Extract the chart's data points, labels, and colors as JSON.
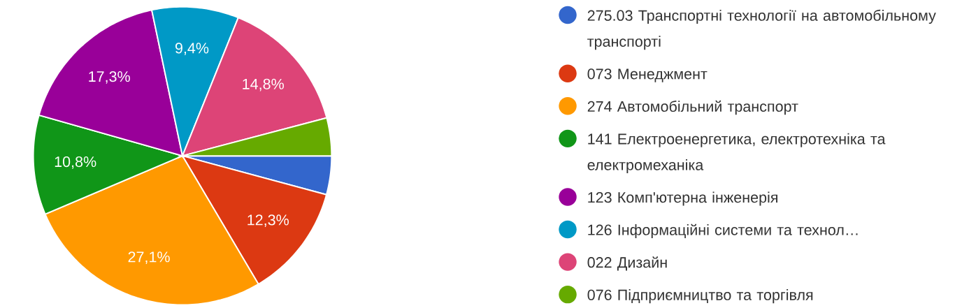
{
  "chart_data": {
    "type": "pie",
    "categories": [
      "275.03 Транспортні технології на автомобільному транспорті",
      "073 Менеджмент",
      "274 Автомобільний транспорт",
      "141 Електроенергетика, електротехніка та електромеханіка",
      "123 Комп'ютерна інженерія",
      "126 Інформаційні системи та технол…",
      "022 Дизайн",
      "076 Підприємництво та торгівля"
    ],
    "values": [
      4.2,
      12.3,
      27.1,
      10.8,
      17.3,
      9.4,
      14.8,
      4.1
    ],
    "value_labels": [
      null,
      "12,3%",
      "27,1%",
      "10,8%",
      "17,3%",
      "9,4%",
      "14,8%",
      null
    ],
    "colors": [
      "#3366cc",
      "#dc3912",
      "#ff9900",
      "#109618",
      "#990099",
      "#0099c6",
      "#dd4477",
      "#66aa00"
    ],
    "legend": "right"
  }
}
